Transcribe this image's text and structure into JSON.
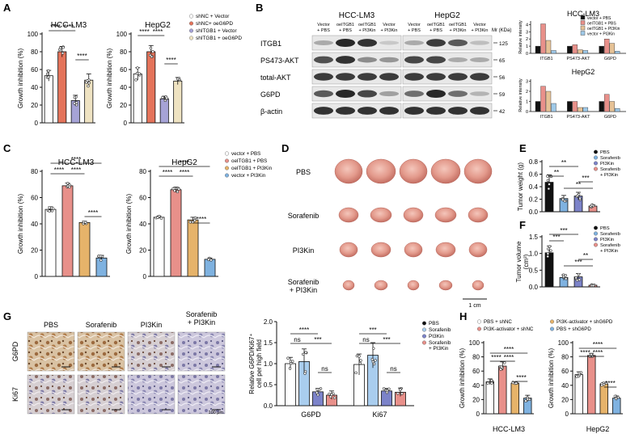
{
  "panels": {
    "A": {
      "letter": "A",
      "legend": [
        "shNC + Vector",
        "shNC+ oeG6PD",
        "shITGB1 + Vector",
        "shITGB1 + oeG6PD"
      ],
      "ylabel": "Growth  inhibition (%)",
      "charts": [
        {
          "title": "HCC-LM3",
          "yticks": [
            0,
            20,
            40,
            60,
            80,
            100
          ],
          "ymax": 100,
          "values": [
            53,
            80,
            25,
            48
          ],
          "errors": [
            6,
            6,
            6,
            7
          ],
          "sig": [
            {
              "a": 0,
              "b": 1,
              "l": "****"
            },
            {
              "a": 1,
              "b": 2,
              "l": "****"
            },
            {
              "a": 2,
              "b": 3,
              "l": "****"
            }
          ]
        },
        {
          "title": "HepG2",
          "yticks": [
            0,
            20,
            40,
            60,
            80,
            100
          ],
          "ymax": 100,
          "values": [
            55,
            80,
            27,
            47
          ],
          "errors": [
            7,
            7,
            3,
            4
          ],
          "sig": [
            {
              "a": 0,
              "b": 1,
              "l": "****"
            },
            {
              "a": 1,
              "b": 2,
              "l": "****"
            },
            {
              "a": 2,
              "b": 3,
              "l": "****"
            }
          ]
        }
      ],
      "colors": [
        "#ffffff",
        "#e4735a",
        "#a6a3d6",
        "#efe3c2"
      ]
    },
    "B": {
      "letter": "B",
      "cell_lines": [
        "HCC-LM3",
        "HepG2"
      ],
      "lane_labels": [
        "Vector\n+ PBS",
        "oeITGB1\n+ PBS",
        "oeITGB1\n+ PI3Kin",
        "Vector\n+ PI3Kin"
      ],
      "mr_label": "Mr (KDa)",
      "rows": [
        {
          "name": "ITGB1",
          "mw": "125"
        },
        {
          "name": "PS473-AKT",
          "mw": "65"
        },
        {
          "name": "total-AKT",
          "mw": "56"
        },
        {
          "name": "G6PD",
          "mw": "59"
        },
        {
          "name": "β-actin",
          "mw": "42"
        }
      ],
      "quant": [
        {
          "title": "HCC-LM3",
          "groups": [
            "ITGB1",
            "PS473-AKT",
            "G6PD"
          ],
          "ylabel": "Relative intensity",
          "yticks": [
            0,
            1,
            2,
            3,
            4
          ],
          "ymax": 4.5,
          "values": [
            [
              1.0,
              4.1,
              1.8,
              0.4
            ],
            [
              1.0,
              1.2,
              0.5,
              0.4
            ],
            [
              1.0,
              2.0,
              1.4,
              0.3
            ]
          ]
        },
        {
          "title": "HepG2",
          "groups": [
            "ITGB1",
            "PS473-AKT",
            "G6PD"
          ],
          "ylabel": "Relative intensity",
          "yticks": [
            0,
            1,
            2,
            3
          ],
          "ymax": 3.2,
          "values": [
            [
              1.0,
              2.5,
              2.0,
              0.8
            ],
            [
              1.0,
              1.0,
              0.4,
              0.4
            ],
            [
              1.0,
              1.7,
              1.0,
              0.3
            ]
          ]
        }
      ],
      "legend": [
        "vector + PBS",
        "oeITGB1 + PBS",
        "oeITGB1 + PI3Kin",
        "vector + PI3Kin"
      ],
      "colors": [
        "#111111",
        "#e8908a",
        "#e6c296",
        "#9ec9e8"
      ]
    },
    "C": {
      "letter": "C",
      "legend": [
        "vector + PBS",
        "oeITGB1 + PBS",
        "oeITGB1 + PI3Kin",
        "vector + PI3Kin"
      ],
      "ylabel": "Growth  inhibition (%)",
      "charts": [
        {
          "title": "HCC-LM3",
          "yticks": [
            0,
            20,
            40,
            60,
            80
          ],
          "ymax": 80,
          "values": [
            51,
            69,
            41,
            14
          ],
          "errors": [
            2,
            2,
            1,
            2
          ],
          "sig": [
            {
              "a": 0,
              "b": 1,
              "l": "****"
            },
            {
              "a": 1,
              "b": 2,
              "l": "****"
            },
            {
              "a": 0,
              "b": 3,
              "l": "****"
            },
            {
              "a": 2,
              "b": 3,
              "l": "****"
            }
          ]
        },
        {
          "title": "HepG2",
          "yticks": [
            0,
            20,
            40,
            60,
            80
          ],
          "ymax": 80,
          "values": [
            45,
            66,
            43,
            13
          ],
          "errors": [
            1,
            2,
            2,
            1
          ],
          "sig": [
            {
              "a": 0,
              "b": 1,
              "l": "****"
            },
            {
              "a": 1,
              "b": 2,
              "l": "****"
            },
            {
              "a": 0,
              "b": 3,
              "l": "****"
            },
            {
              "a": 2,
              "b": 3,
              "l": "****"
            }
          ]
        }
      ],
      "colors": [
        "#ffffff",
        "#e8908a",
        "#e6b36a",
        "#7fb2e0"
      ]
    },
    "D": {
      "letter": "D",
      "rows": [
        "PBS",
        "Sorafenib",
        "PI3Kin",
        "Sorafenib\n+ PI3Kin"
      ],
      "scale": "1 cm"
    },
    "E": {
      "letter": "E",
      "ylabel": "Tumor weight (g)",
      "yticks": [
        "0.0",
        "0.2",
        "0.4",
        "0.6",
        "0.8"
      ],
      "ymax": 0.8,
      "values": [
        0.47,
        0.21,
        0.25,
        0.09
      ],
      "errors": [
        0.12,
        0.05,
        0.06,
        0.02
      ],
      "sig": [
        {
          "a": 0,
          "b": 1,
          "l": "**"
        },
        {
          "a": 0,
          "b": 2,
          "l": "**"
        },
        {
          "a": 1,
          "b": 3,
          "l": "**"
        },
        {
          "a": 2,
          "b": 3,
          "l": "***"
        }
      ],
      "legend": [
        "PBS",
        "Sorafenib",
        "PI3Kin",
        "Sorafenib\n+ PI3Kin"
      ]
    },
    "F": {
      "letter": "F",
      "ylabel": "Tumor volume\n(cm³)",
      "yticks": [
        "0.0",
        "0.5",
        "1.0",
        "1.5"
      ],
      "ymax": 1.5,
      "values": [
        1.02,
        0.28,
        0.3,
        0.05
      ],
      "errors": [
        0.2,
        0.08,
        0.1,
        0.02
      ],
      "sig": [
        {
          "a": 0,
          "b": 1,
          "l": "***"
        },
        {
          "a": 0,
          "b": 2,
          "l": "***"
        },
        {
          "a": 1,
          "b": 3,
          "l": "***"
        },
        {
          "a": 2,
          "b": 3,
          "l": "**"
        }
      ],
      "legend": [
        "PBS",
        "Sorafenib",
        "PI3Kin",
        "Sorafenib\n+ PI3Kin"
      ]
    },
    "G": {
      "letter": "G",
      "col_labels": [
        "PBS",
        "Sorafenib",
        "PI3Kin",
        "Sorafenib\n+ PI3Kin"
      ],
      "row_labels": [
        "G6PD",
        "Ki67"
      ],
      "scale": "100 μm",
      "ylabel": "Relative G6PD/Ki67⁺\ncell per high field",
      "yticks": [
        "0.0",
        "0.5",
        "1.0",
        "1.5",
        "2.0"
      ],
      "ymax": 2.0,
      "groups": [
        "G6PD",
        "Ki67"
      ],
      "values": [
        [
          1.0,
          1.05,
          0.33,
          0.25
        ],
        [
          0.98,
          1.2,
          0.35,
          0.32
        ]
      ],
      "errors": [
        [
          0.15,
          0.3,
          0.08,
          0.1
        ],
        [
          0.25,
          0.3,
          0.06,
          0.1
        ]
      ],
      "sig": [
        [
          {
            "a": 0,
            "b": 1,
            "l": "ns"
          },
          {
            "a": 0,
            "b": 2,
            "l": "****"
          },
          {
            "a": 1,
            "b": 3,
            "l": "***"
          },
          {
            "a": 2,
            "b": 3,
            "l": "ns"
          }
        ],
        [
          {
            "a": 0,
            "b": 1,
            "l": "ns"
          },
          {
            "a": 0,
            "b": 2,
            "l": "***"
          },
          {
            "a": 1,
            "b": 3,
            "l": "***"
          },
          {
            "a": 2,
            "b": 3,
            "l": "ns"
          }
        ]
      ],
      "legend": [
        "PBS",
        "Sorafenib",
        "PI3Kin",
        "Sorafenib\n+ PI3Kin"
      ]
    },
    "H": {
      "letter": "H",
      "legend": [
        "PBS + shNC",
        "PI3K-activator + shNC",
        "PI3K-activator + shG6PD",
        "PBS + shG6PD"
      ],
      "ylabel": "Growth  inhibition (%)",
      "charts": [
        {
          "title": "HCC-LM3",
          "yticks": [
            0,
            20,
            40,
            60,
            80,
            100
          ],
          "ymax": 100,
          "values": [
            45,
            67,
            43,
            22
          ],
          "errors": [
            4,
            6,
            2,
            4
          ],
          "sig": [
            {
              "a": 0,
              "b": 1,
              "l": "****"
            },
            {
              "a": 1,
              "b": 2,
              "l": "****"
            },
            {
              "a": 0,
              "b": 3,
              "l": "****"
            },
            {
              "a": 2,
              "b": 3,
              "l": "****"
            }
          ]
        },
        {
          "title": "HepG2",
          "yticks": [
            0,
            20,
            40,
            60,
            80,
            100
          ],
          "ymax": 100,
          "values": [
            55,
            82,
            42,
            22
          ],
          "errors": [
            4,
            3,
            2,
            3
          ],
          "sig": [
            {
              "a": 0,
              "b": 1,
              "l": "****"
            },
            {
              "a": 1,
              "b": 2,
              "l": "****"
            },
            {
              "a": 0,
              "b": 3,
              "l": "****"
            },
            {
              "a": 2,
              "b": 3,
              "l": "****"
            }
          ]
        }
      ],
      "colors": [
        "#ffffff",
        "#e8908a",
        "#e6b36a",
        "#7fb2e0"
      ]
    }
  },
  "colors4": [
    "#111111",
    "#7fb2e0",
    "#7c83c9",
    "#e8908a"
  ]
}
